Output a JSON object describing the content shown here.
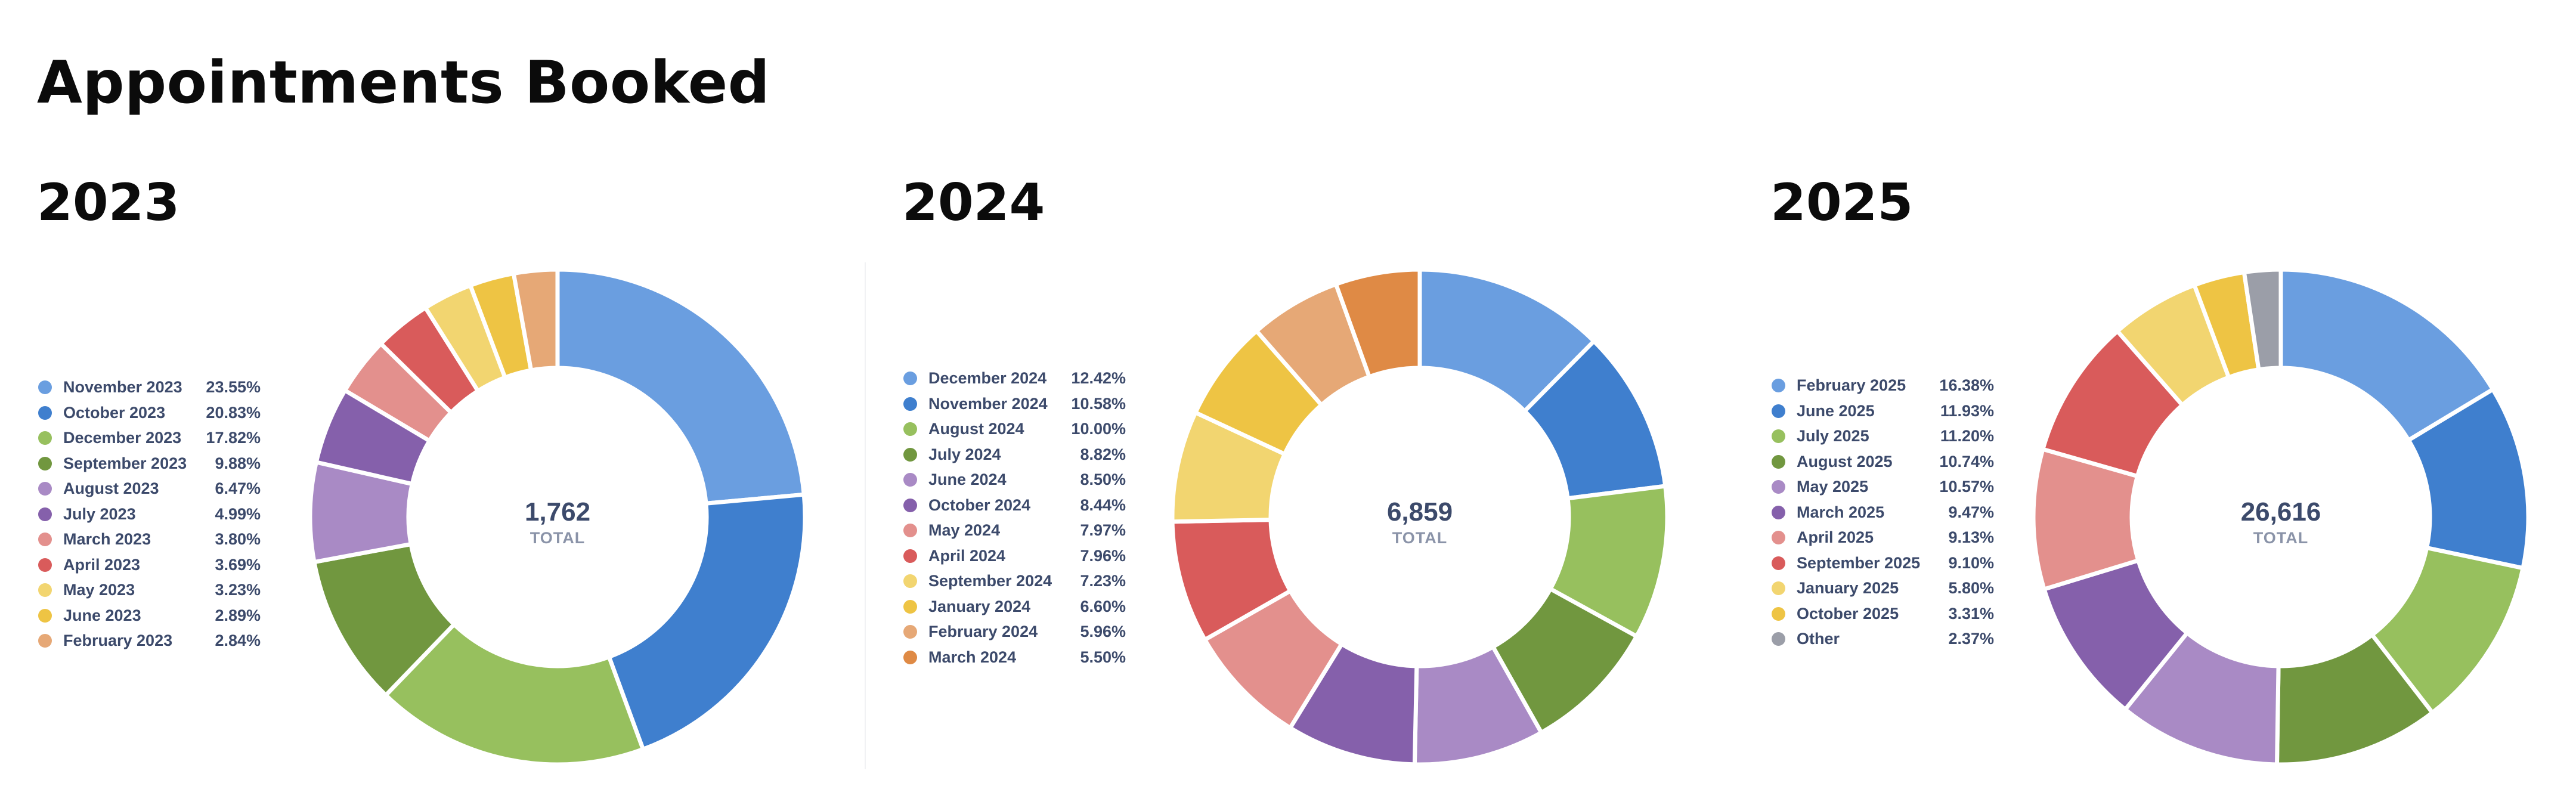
{
  "page": {
    "title": "Appointments Booked"
  },
  "colors": {
    "palette": [
      "#6a9ee0",
      "#3f7fce",
      "#97c05e",
      "#71973f",
      "#a98ac5",
      "#8560ab",
      "#e3908d",
      "#d95b5b",
      "#f2d570",
      "#eec444",
      "#e6a876",
      "#df8a45",
      "#9b9ea8"
    ]
  },
  "chart_data": [
    {
      "type": "pie",
      "title": "2023",
      "center": {
        "value": "1,762",
        "label": "TOTAL"
      },
      "legend_position": "left",
      "slices": [
        {
          "label": "November 2023",
          "percent_label": "23.55%",
          "value": 23.55,
          "color": "#6a9ee0"
        },
        {
          "label": "October 2023",
          "percent_label": "20.83%",
          "value": 20.83,
          "color": "#3f7fce"
        },
        {
          "label": "December 2023",
          "percent_label": "17.82%",
          "value": 17.82,
          "color": "#97c05e"
        },
        {
          "label": "September 2023",
          "percent_label": "9.88%",
          "value": 9.88,
          "color": "#71973f"
        },
        {
          "label": "August 2023",
          "percent_label": "6.47%",
          "value": 6.47,
          "color": "#a98ac5"
        },
        {
          "label": "July 2023",
          "percent_label": "4.99%",
          "value": 4.99,
          "color": "#8560ab"
        },
        {
          "label": "March 2023",
          "percent_label": "3.80%",
          "value": 3.8,
          "color": "#e3908d"
        },
        {
          "label": "April 2023",
          "percent_label": "3.69%",
          "value": 3.69,
          "color": "#d95b5b"
        },
        {
          "label": "May 2023",
          "percent_label": "3.23%",
          "value": 3.23,
          "color": "#f2d570"
        },
        {
          "label": "June 2023",
          "percent_label": "2.89%",
          "value": 2.89,
          "color": "#eec444"
        },
        {
          "label": "February 2023",
          "percent_label": "2.84%",
          "value": 2.84,
          "color": "#e6a876"
        }
      ]
    },
    {
      "type": "pie",
      "title": "2024",
      "center": {
        "value": "6,859",
        "label": "TOTAL"
      },
      "legend_position": "left",
      "slices": [
        {
          "label": "December 2024",
          "percent_label": "12.42%",
          "value": 12.42,
          "color": "#6a9ee0"
        },
        {
          "label": "November 2024",
          "percent_label": "10.58%",
          "value": 10.58,
          "color": "#3f7fce"
        },
        {
          "label": "August 2024",
          "percent_label": "10.00%",
          "value": 10.0,
          "color": "#97c05e"
        },
        {
          "label": "July 2024",
          "percent_label": "8.82%",
          "value": 8.82,
          "color": "#71973f"
        },
        {
          "label": "June 2024",
          "percent_label": "8.50%",
          "value": 8.5,
          "color": "#a98ac5"
        },
        {
          "label": "October 2024",
          "percent_label": "8.44%",
          "value": 8.44,
          "color": "#8560ab"
        },
        {
          "label": "May 2024",
          "percent_label": "7.97%",
          "value": 7.97,
          "color": "#e3908d"
        },
        {
          "label": "April 2024",
          "percent_label": "7.96%",
          "value": 7.96,
          "color": "#d95b5b"
        },
        {
          "label": "September 2024",
          "percent_label": "7.23%",
          "value": 7.23,
          "color": "#f2d570"
        },
        {
          "label": "January 2024",
          "percent_label": "6.60%",
          "value": 6.6,
          "color": "#eec444"
        },
        {
          "label": "February 2024",
          "percent_label": "5.96%",
          "value": 5.96,
          "color": "#e6a876"
        },
        {
          "label": "March 2024",
          "percent_label": "5.50%",
          "value": 5.5,
          "color": "#df8a45"
        }
      ]
    },
    {
      "type": "pie",
      "title": "2025",
      "center": {
        "value": "26,616",
        "label": "TOTAL"
      },
      "legend_position": "left",
      "slices": [
        {
          "label": "February 2025",
          "percent_label": "16.38%",
          "value": 16.38,
          "color": "#6a9ee0"
        },
        {
          "label": "June 2025",
          "percent_label": "11.93%",
          "value": 11.93,
          "color": "#3f7fce"
        },
        {
          "label": "July 2025",
          "percent_label": "11.20%",
          "value": 11.2,
          "color": "#97c05e"
        },
        {
          "label": "August 2025",
          "percent_label": "10.74%",
          "value": 10.74,
          "color": "#71973f"
        },
        {
          "label": "May 2025",
          "percent_label": "10.57%",
          "value": 10.57,
          "color": "#a98ac5"
        },
        {
          "label": "March 2025",
          "percent_label": "9.47%",
          "value": 9.47,
          "color": "#8560ab"
        },
        {
          "label": "April 2025",
          "percent_label": "9.13%",
          "value": 9.13,
          "color": "#e3908d"
        },
        {
          "label": "September 2025",
          "percent_label": "9.10%",
          "value": 9.1,
          "color": "#d95b5b"
        },
        {
          "label": "January 2025",
          "percent_label": "5.80%",
          "value": 5.8,
          "color": "#f2d570"
        },
        {
          "label": "October 2025",
          "percent_label": "3.31%",
          "value": 3.31,
          "color": "#eec444"
        },
        {
          "label": "Other",
          "percent_label": "2.37%",
          "value": 2.37,
          "color": "#9b9ea8"
        }
      ]
    }
  ]
}
